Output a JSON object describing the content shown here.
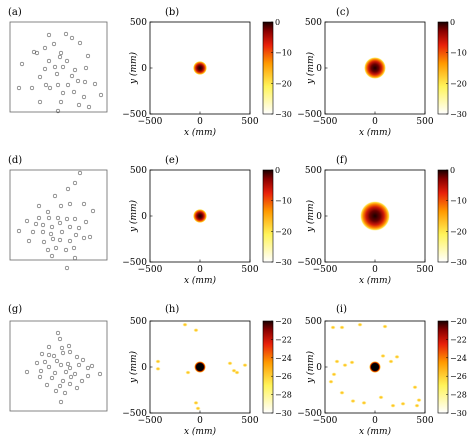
{
  "chart_data": [
    {
      "type": "scatter",
      "panel": "(a)",
      "x": [
        34,
        45,
        54,
        49,
        66,
        72,
        80,
        61,
        37,
        49,
        60,
        67,
        88,
        22,
        45,
        55,
        63,
        75,
        86,
        57,
        72,
        40,
        68,
        78,
        46,
        58,
        85,
        95,
        19,
        32,
        50,
        63,
        74,
        84,
        101,
        40,
        61,
        79,
        58,
        89
      ],
      "y": [
        52,
        48,
        44,
        35,
        34,
        38,
        43,
        53,
        53,
        61,
        57,
        61,
        56,
        64,
        69,
        67,
        67,
        70,
        68,
        74,
        76,
        77,
        85,
        81,
        85,
        85,
        82,
        84,
        88,
        88,
        88,
        93,
        92,
        97,
        95,
        102,
        102,
        105,
        111,
        107
      ]
    },
    {
      "type": "heatmap",
      "panel": "(b)",
      "xlabel": "x (mm)",
      "ylabel": "y (mm)",
      "xlim": [
        -500,
        500
      ],
      "ylim": [
        -500,
        500
      ],
      "xticks": [
        "−500",
        "0",
        "500"
      ],
      "yticks": [
        "500",
        "0",
        "−500"
      ],
      "colorbar": {
        "range": [
          -30,
          0
        ],
        "ticks": [
          "0",
          "−10",
          "−20",
          "−30"
        ]
      },
      "blob": {
        "x_mm": 0,
        "y_mm": 0,
        "radius_mm": 70
      }
    },
    {
      "type": "heatmap",
      "panel": "(c)",
      "xlabel": "x (mm)",
      "ylabel": "y (mm)",
      "xlim": [
        -500,
        500
      ],
      "ylim": [
        -500,
        500
      ],
      "xticks": [
        "−500",
        "0",
        "500"
      ],
      "yticks": [
        "500",
        "0",
        "−500"
      ],
      "colorbar": {
        "range": [
          -30,
          0
        ],
        "ticks": [
          "0",
          "−10",
          "−20",
          "−30"
        ]
      },
      "blob": {
        "x_mm": 0,
        "y_mm": 0,
        "radius_mm": 110
      }
    },
    {
      "type": "scatter",
      "panel": "(d)",
      "x": [
        80,
        75,
        68,
        55,
        39,
        61,
        70,
        84,
        48,
        93,
        27,
        39,
        49,
        58,
        67,
        75,
        86,
        36,
        43,
        52,
        60,
        70,
        79,
        19,
        33,
        43,
        51,
        62,
        76,
        90,
        29,
        44,
        53,
        60,
        70,
        84,
        48,
        56,
        66,
        74,
        52,
        75,
        67
      ],
      "y": [
        173,
        183,
        189,
        196,
        206,
        206,
        204,
        204,
        212,
        211,
        221,
        218,
        218,
        218,
        219,
        219,
        222,
        224,
        225,
        227,
        223,
        227,
        228,
        231,
        232,
        232,
        234,
        232,
        235,
        237,
        241,
        242,
        239,
        240,
        241,
        238,
        250,
        248,
        250,
        248,
        256,
        258,
        268
      ]
    },
    {
      "type": "heatmap",
      "panel": "(e)",
      "xlabel": "x (mm)",
      "ylabel": "y (mm)",
      "xlim": [
        -500,
        500
      ],
      "ylim": [
        -500,
        500
      ],
      "xticks": [
        "−500",
        "0",
        "500"
      ],
      "yticks": [
        "500",
        "0",
        "−500"
      ],
      "colorbar": {
        "range": [
          -30,
          0
        ],
        "ticks": [
          "0",
          "−10",
          "−20",
          "−30"
        ]
      },
      "blob": {
        "x_mm": 0,
        "y_mm": 0,
        "radius_mm": 70
      }
    },
    {
      "type": "heatmap",
      "panel": "(f)",
      "xlabel": "x (mm)",
      "ylabel": "y (mm)",
      "xlim": [
        -500,
        500
      ],
      "ylim": [
        -500,
        500
      ],
      "xticks": [
        "−500",
        "0",
        "500"
      ],
      "yticks": [
        "500",
        "0",
        "−500"
      ],
      "colorbar": {
        "range": [
          -30,
          0
        ],
        "ticks": [
          "0",
          "−10",
          "−20",
          "−30"
        ]
      },
      "blob": {
        "x_mm": 0,
        "y_mm": 0,
        "radius_mm": 150
      }
    },
    {
      "type": "scatter",
      "panel": "(g)",
      "x": [
        58,
        60,
        49,
        69,
        62,
        42,
        49,
        54,
        63,
        70,
        77,
        37,
        45,
        57,
        68,
        83,
        92,
        49,
        61,
        70,
        79,
        88,
        27,
        41,
        55,
        66,
        75,
        88,
        100,
        40,
        52,
        63,
        71,
        82,
        47,
        60,
        70,
        77,
        56,
        65,
        61
      ],
      "y": [
        333,
        339,
        347,
        346,
        348,
        354,
        355,
        356,
        353,
        352,
        357,
        363,
        362,
        361,
        364,
        360,
        366,
        367,
        365,
        368,
        365,
        368,
        372,
        371,
        373,
        372,
        374,
        376,
        374,
        377,
        378,
        381,
        377,
        381,
        385,
        386,
        384,
        388,
        391,
        393,
        402
      ]
    },
    {
      "type": "heatmap",
      "panel": "(h)",
      "xlabel": "x (mm)",
      "ylabel": "y (mm)",
      "xlim": [
        -500,
        500
      ],
      "ylim": [
        -500,
        500
      ],
      "xticks": [
        "−500",
        "0",
        "500"
      ],
      "yticks": [
        "500",
        "0",
        "−500"
      ],
      "colorbar": {
        "range": [
          -30,
          -20
        ],
        "ticks": [
          "−20",
          "−22",
          "−24",
          "−26",
          "−28",
          "−30"
        ]
      },
      "blob": {
        "x_mm": 0,
        "y_mm": 0,
        "radius_mm": 60
      },
      "speckles_mm": [
        [
          -420,
          -20
        ],
        [
          -150,
          460
        ],
        [
          -120,
          -60
        ],
        [
          -40,
          400
        ],
        [
          -20,
          -450
        ],
        [
          -40,
          -390
        ],
        [
          300,
          40
        ],
        [
          340,
          -40
        ],
        [
          370,
          -60
        ],
        [
          450,
          20
        ],
        [
          -420,
          60
        ]
      ]
    },
    {
      "type": "heatmap",
      "panel": "(i)",
      "xlabel": "x (mm)",
      "ylabel": "y (mm)",
      "xlim": [
        -500,
        500
      ],
      "ylim": [
        -500,
        500
      ],
      "xticks": [
        "−500",
        "0",
        "500"
      ],
      "yticks": [
        "500",
        "0",
        "−500"
      ],
      "colorbar": {
        "range": [
          -30,
          -20
        ],
        "ticks": [
          "−20",
          "−22",
          "−24",
          "−26",
          "−28",
          "−30"
        ]
      },
      "blob": {
        "x_mm": 0,
        "y_mm": 0,
        "radius_mm": 60
      },
      "speckles_mm": [
        [
          -420,
          430
        ],
        [
          -330,
          430
        ],
        [
          -150,
          460
        ],
        [
          100,
          440
        ],
        [
          -380,
          60
        ],
        [
          -300,
          20
        ],
        [
          -230,
          50
        ],
        [
          80,
          120
        ],
        [
          160,
          60
        ],
        [
          220,
          110
        ],
        [
          -440,
          -160
        ],
        [
          -330,
          -280
        ],
        [
          -220,
          -370
        ],
        [
          -110,
          -390
        ],
        [
          60,
          -330
        ],
        [
          180,
          -420
        ],
        [
          280,
          -400
        ],
        [
          420,
          -420
        ],
        [
          440,
          -360
        ],
        [
          400,
          -220
        ],
        [
          -410,
          -80
        ]
      ]
    }
  ]
}
